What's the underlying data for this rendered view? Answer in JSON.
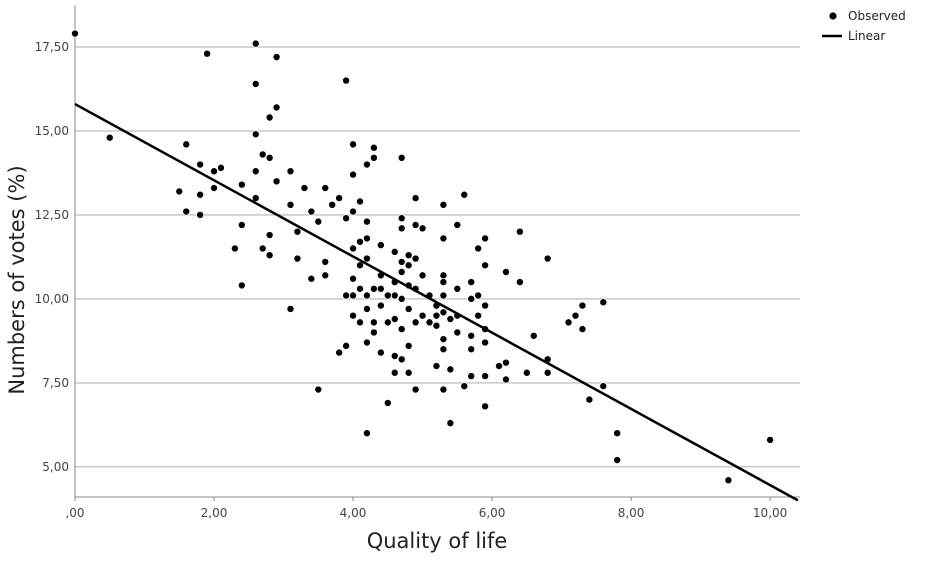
{
  "chart_data": {
    "type": "scatter",
    "xlabel": "Quality of life",
    "ylabel": "Numbers of votes (%)",
    "xlim": [
      0,
      10.43
    ],
    "ylim": [
      4.1,
      18.75
    ],
    "xticks": [
      {
        "value": 0,
        "label": ",00"
      },
      {
        "value": 2,
        "label": "2,00"
      },
      {
        "value": 4,
        "label": "4,00"
      },
      {
        "value": 6,
        "label": "6,00"
      },
      {
        "value": 8,
        "label": "8,00"
      },
      {
        "value": 10,
        "label": "10,00"
      }
    ],
    "yticks": [
      {
        "value": 5,
        "label": "5,00"
      },
      {
        "value": 7.5,
        "label": "7,50"
      },
      {
        "value": 10,
        "label": "10,00"
      },
      {
        "value": 12.5,
        "label": "12,50"
      },
      {
        "value": 15,
        "label": "15,00"
      },
      {
        "value": 17.5,
        "label": "17,50"
      }
    ],
    "grid": true,
    "legend": "upper right",
    "series": [
      {
        "name": "Observed",
        "type": "scatter",
        "color": "#000000",
        "x": [
          0,
          0.5,
          1.6,
          1.8,
          1.9,
          2.1,
          2.0,
          1.5,
          1.8,
          2.0,
          1.6,
          1.8,
          2.4,
          2.4,
          2.3,
          2.4,
          2.6,
          2.6,
          2.9,
          2.9,
          2.8,
          2.6,
          2.7,
          2.8,
          2.6,
          2.9,
          2.6,
          3.1,
          2.8,
          2.7,
          2.8,
          3.3,
          3.1,
          3.2,
          3.4,
          3.5,
          3.2,
          3.4,
          3.6,
          3.6,
          3.6,
          3.1,
          3.5,
          3.9,
          4.0,
          3.8,
          3.9,
          3.7,
          4.0,
          4.2,
          4.3,
          4.3,
          4.1,
          4.0,
          4.2,
          4.0,
          4.1,
          4.2,
          4.2,
          4.1,
          4.0,
          4.1,
          3.9,
          4.0,
          4.2,
          4.3,
          4.4,
          4.4,
          4.2,
          4.0,
          4.1,
          4.3,
          4.4,
          3.9,
          3.8,
          4.2,
          4.4,
          4.3,
          4.5,
          4.5,
          4.2,
          4.4,
          4.6,
          4.7,
          4.7,
          4.6,
          4.8,
          4.6,
          4.7,
          4.5,
          4.8,
          4.6,
          4.9,
          4.7,
          4.6,
          4.7,
          4.8,
          4.6,
          4.8,
          4.9,
          4.7,
          4.7,
          4.7,
          4.9,
          5.0,
          4.9,
          4.8,
          4.9,
          4.8,
          5.0,
          4.9,
          5.1,
          5.2,
          5.0,
          5.1,
          5.2,
          5.3,
          5.3,
          5.2,
          5.3,
          5.4,
          5.5,
          5.3,
          5.2,
          5.4,
          5.3,
          5.4,
          5.3,
          5.6,
          5.3,
          5.5,
          5.3,
          5.3,
          5.5,
          5.7,
          5.8,
          5.7,
          5.5,
          5.7,
          5.7,
          5.6,
          5.9,
          5.8,
          5.9,
          5.7,
          5.8,
          5.9,
          5.9,
          5.9,
          5.9,
          5.9,
          6.1,
          6.2,
          6.2,
          6.2,
          6.4,
          6.4,
          6.6,
          6.5,
          6.8,
          6.8,
          6.8,
          7.1,
          7.2,
          7.3,
          7.3,
          7.6,
          7.6,
          7.4,
          7.8,
          7.8,
          9.4,
          10.0
        ],
        "values": [
          17.9,
          14.8,
          14.6,
          14.0,
          17.3,
          13.9,
          13.8,
          13.2,
          13.1,
          13.3,
          12.6,
          12.5,
          13.4,
          12.2,
          11.5,
          10.4,
          17.6,
          16.4,
          17.2,
          15.7,
          15.4,
          14.9,
          14.3,
          14.2,
          13.8,
          13.5,
          13.0,
          13.8,
          11.9,
          11.5,
          11.3,
          13.3,
          12.8,
          12.0,
          12.6,
          12.3,
          11.2,
          10.6,
          13.3,
          11.1,
          10.7,
          9.7,
          7.3,
          16.5,
          14.6,
          13.0,
          12.4,
          12.8,
          13.7,
          14.0,
          14.5,
          14.2,
          12.9,
          12.6,
          12.3,
          11.5,
          11.7,
          11.8,
          11.2,
          11.0,
          10.6,
          10.3,
          10.1,
          10.1,
          10.1,
          10.3,
          10.7,
          10.3,
          9.7,
          9.5,
          9.3,
          9.3,
          9.8,
          8.6,
          8.4,
          8.7,
          8.4,
          9.0,
          9.3,
          6.9,
          6.0,
          11.6,
          11.4,
          11.1,
          10.8,
          10.5,
          10.4,
          10.1,
          10.0,
          10.1,
          9.7,
          9.4,
          9.3,
          9.1,
          8.3,
          8.2,
          8.6,
          7.8,
          7.8,
          7.3,
          14.2,
          12.4,
          12.1,
          12.2,
          12.1,
          13.0,
          11.3,
          11.2,
          11.0,
          10.7,
          10.3,
          10.1,
          9.8,
          9.5,
          9.3,
          9.5,
          10.1,
          9.6,
          9.2,
          8.8,
          9.4,
          9.5,
          8.5,
          8.0,
          7.9,
          7.3,
          6.3,
          12.8,
          13.1,
          11.8,
          12.2,
          10.7,
          10.5,
          10.3,
          10.0,
          9.5,
          8.9,
          9.0,
          8.5,
          7.7,
          7.4,
          11.8,
          11.5,
          11.0,
          10.5,
          10.1,
          9.8,
          9.1,
          8.7,
          7.7,
          6.8,
          8.0,
          8.1,
          7.6,
          10.8,
          10.5,
          12.0,
          8.9,
          7.8,
          11.2,
          8.2,
          7.8,
          9.3,
          9.5,
          9.8,
          9.1,
          9.9,
          7.4,
          7.0,
          6.0,
          5.2,
          4.6,
          5.8
        ]
      },
      {
        "name": "Linear",
        "type": "line",
        "color": "#000000",
        "x": [
          0,
          10.4
        ],
        "values": [
          15.8,
          4.0
        ]
      }
    ]
  }
}
